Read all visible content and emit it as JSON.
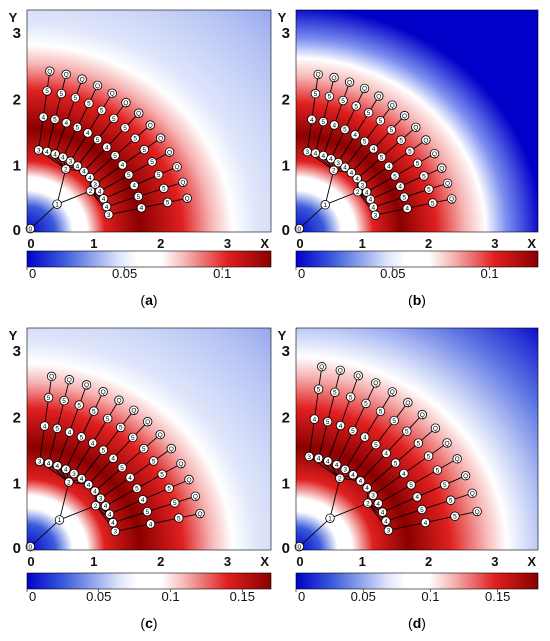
{
  "panels": [
    {
      "id": "a",
      "caption": "(a)",
      "colorbar": {
        "ticks": [
          "0",
          "0.05",
          "0.1"
        ],
        "values": [
          0,
          0.05,
          0.1
        ],
        "max": 0.125
      },
      "mode": "light",
      "x_ticks": [
        "0",
        "1",
        "2",
        "3"
      ],
      "y_ticks": [
        "0",
        "1",
        "2",
        "3"
      ],
      "axis_labels": {
        "x": "X",
        "y": "Y"
      },
      "tree_extent": 2.5
    },
    {
      "id": "b",
      "caption": "(b)",
      "colorbar": {
        "ticks": [
          "0",
          "0.05",
          "0.1"
        ],
        "values": [
          0,
          0.05,
          0.1
        ],
        "max": 0.125
      },
      "mode": "dark",
      "x_ticks": [
        "0",
        "1",
        "2",
        "3"
      ],
      "y_ticks": [
        "0",
        "1",
        "2",
        "3"
      ],
      "axis_labels": {
        "x": "X",
        "y": "Y"
      },
      "tree_extent": 2.45
    },
    {
      "id": "c",
      "caption": "(c)",
      "colorbar": {
        "ticks": [
          "0",
          "0.05",
          "0.1",
          "0.15"
        ],
        "values": [
          0,
          0.05,
          0.1,
          0.15
        ],
        "max": 0.17
      },
      "mode": "light",
      "x_ticks": [
        "0",
        "1",
        "2",
        "3"
      ],
      "y_ticks": [
        "0",
        "1",
        "2",
        "3"
      ],
      "axis_labels": {
        "x": "X",
        "y": "Y"
      },
      "tree_extent": 2.7
    },
    {
      "id": "d",
      "caption": "(d)",
      "colorbar": {
        "ticks": [
          "0",
          "0.05",
          "0.1",
          "0.15"
        ],
        "values": [
          0,
          0.05,
          0.1,
          0.15
        ],
        "max": 0.18
      },
      "mode": "medium",
      "x_ticks": [
        "0",
        "1",
        "2",
        "3"
      ],
      "y_ticks": [
        "0",
        "1",
        "2",
        "3"
      ],
      "axis_labels": {
        "x": "X",
        "y": "Y"
      },
      "tree_extent": 2.85
    }
  ],
  "node_labels": [
    "0",
    "1",
    "2",
    "3",
    "4",
    "5",
    "Q"
  ],
  "colors": {
    "blue_dark": "#0000c8",
    "blue": "#3b5bdb",
    "blue_light": "#dfe6fb",
    "white": "#ffffff",
    "red_light": "#f6b3b3",
    "red": "#e02020",
    "red_dark": "#8a0000"
  }
}
